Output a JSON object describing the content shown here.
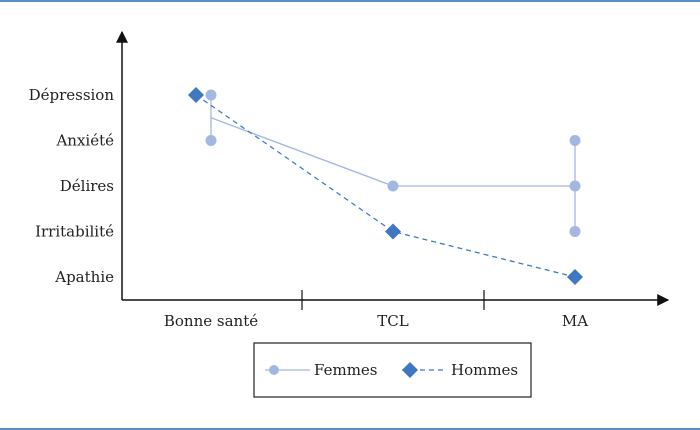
{
  "chart_data": {
    "type": "line",
    "categories": [
      "Bonne santé",
      "TCL",
      "MA"
    ],
    "y_categories": [
      "Apathie",
      "Irritabilité",
      "Délires",
      "Anxiété",
      "Dépression"
    ],
    "series": [
      {
        "name": "Femmes",
        "color": "#a3b8e0",
        "marker": "circle",
        "line": "solid",
        "points": [
          {
            "x": "Bonne santé",
            "y": "Dépression"
          },
          {
            "x": "Bonne santé",
            "y": "Anxiété"
          },
          {
            "x": "TCL",
            "y": "Délires"
          },
          {
            "x": "MA",
            "y": "Anxiété"
          },
          {
            "x": "MA",
            "y": "Délires"
          },
          {
            "x": "MA",
            "y": "Irritabilité"
          }
        ]
      },
      {
        "name": "Hommes",
        "color": "#3f78c0",
        "marker": "diamond",
        "line": "dashed",
        "points": [
          {
            "x": "Bonne santé",
            "y": "Dépression"
          },
          {
            "x": "TCL",
            "y": "Irritabilité"
          },
          {
            "x": "MA",
            "y": "Apathie"
          }
        ]
      }
    ],
    "legend": {
      "position": "bottom-center"
    }
  }
}
